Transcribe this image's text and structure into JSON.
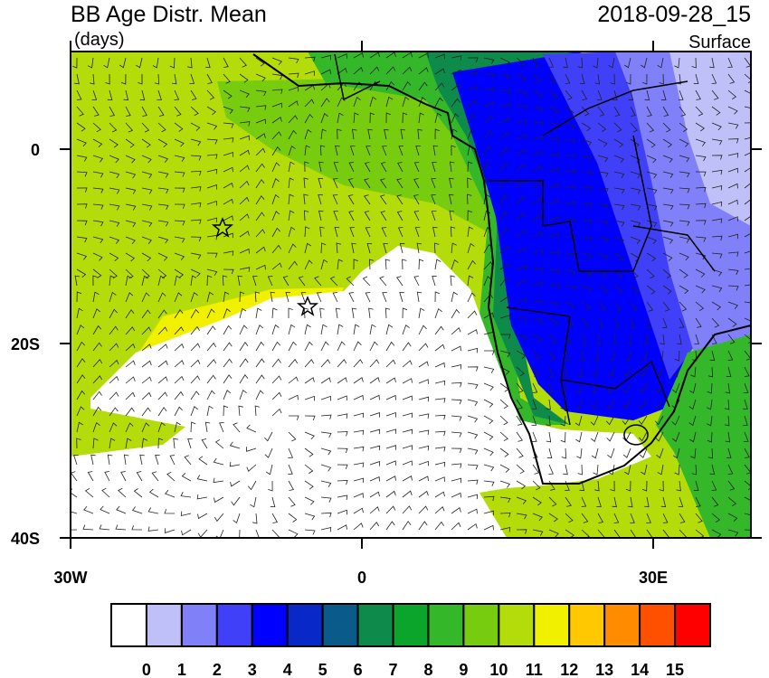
{
  "title": "BB Age Distr. Mean",
  "units": "(days)",
  "valid_time": "2018-09-28_15",
  "level": "Surface",
  "x_axis": {
    "labels": [
      "30W",
      "0",
      "30E"
    ]
  },
  "y_axis": {
    "labels": [
      "0",
      "20S",
      "40S"
    ]
  },
  "colorbar": {
    "levels": [
      0,
      1,
      2,
      3,
      4,
      5,
      6,
      7,
      8,
      9,
      10,
      11,
      12,
      13,
      14,
      15
    ],
    "colors": [
      "#ffffff",
      "#c0c0f8",
      "#8080f8",
      "#4040f8",
      "#0000ff",
      "#0828c8",
      "#0a5a8a",
      "#0e8a4a",
      "#0aa52a",
      "#34b82a",
      "#78cc10",
      "#b4dc0a",
      "#f0f000",
      "#ffc800",
      "#ff8c00",
      "#ff5000",
      "#ff0000"
    ]
  }
}
